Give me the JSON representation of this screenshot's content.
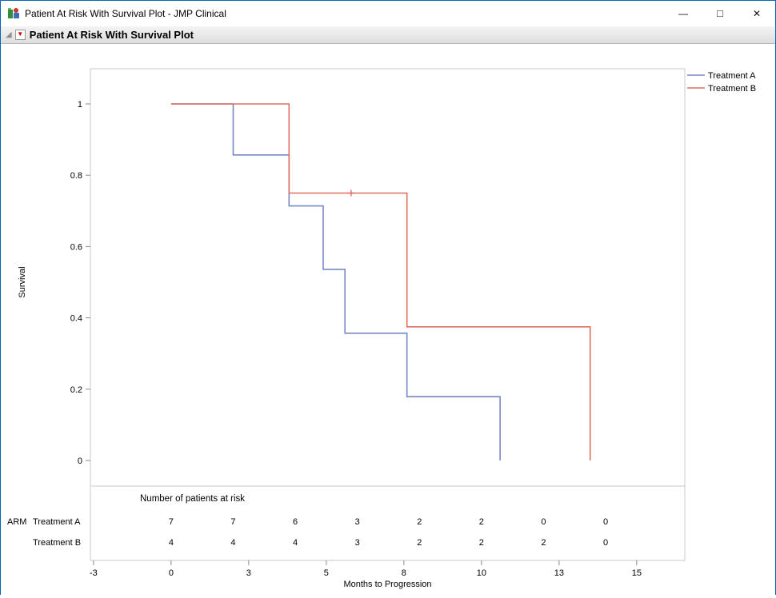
{
  "window": {
    "title": "Patient At Risk With Survival Plot - JMP Clinical"
  },
  "icons": {
    "minimize": "—",
    "maximize": "□",
    "close": "✕",
    "red_triangle_menu": "▼",
    "disclosure": "◢"
  },
  "outline": {
    "title": "Patient At Risk With Survival Plot"
  },
  "chart_data": {
    "type": "line",
    "subtype": "kaplan-meier-step",
    "title": "",
    "xlabel": "Months to Progression",
    "ylabel": "Survival",
    "xlim": [
      -2.6,
      16.55
    ],
    "ylim": [
      -0.07,
      1.1
    ],
    "grid": false,
    "legend_position": "top-right",
    "colors": {
      "treatment_a": "#7789c4",
      "treatment_b": "#dd7063",
      "frame": "#c8c8c8",
      "tick": "#8a8a8a"
    },
    "x_ticks": [
      {
        "v": -2.5,
        "label": "-3"
      },
      {
        "v": 0,
        "label": "0"
      },
      {
        "v": 2.5,
        "label": "3"
      },
      {
        "v": 5,
        "label": "5"
      },
      {
        "v": 7.5,
        "label": "8"
      },
      {
        "v": 10,
        "label": "10"
      },
      {
        "v": 12.5,
        "label": "13"
      },
      {
        "v": 15,
        "label": "15"
      }
    ],
    "y_ticks": [
      {
        "v": 1,
        "label": "1"
      },
      {
        "v": 0.8,
        "label": "0.8"
      },
      {
        "v": 0.6,
        "label": "0.6"
      },
      {
        "v": 0.4,
        "label": "0.4"
      },
      {
        "v": 0.2,
        "label": "0.2"
      },
      {
        "v": 0,
        "label": "0"
      }
    ],
    "series": [
      {
        "name": "Treatment A",
        "color": "#7789c4",
        "points": [
          [
            0,
            1
          ],
          [
            2,
            1
          ],
          [
            2,
            0.857
          ],
          [
            3.8,
            0.857
          ],
          [
            3.8,
            0.714
          ],
          [
            4.9,
            0.714
          ],
          [
            4.9,
            0.536
          ],
          [
            5.6,
            0.536
          ],
          [
            5.6,
            0.357
          ],
          [
            7.6,
            0.357
          ],
          [
            7.6,
            0.179
          ],
          [
            10.6,
            0.179
          ],
          [
            10.6,
            0
          ]
        ],
        "censors": []
      },
      {
        "name": "Treatment B",
        "color": "#dd7063",
        "points": [
          [
            0,
            1
          ],
          [
            3.8,
            1
          ],
          [
            3.8,
            0.75
          ],
          [
            7.6,
            0.75
          ],
          [
            7.6,
            0.375
          ],
          [
            13.5,
            0.375
          ],
          [
            13.5,
            0
          ]
        ],
        "censors": [
          [
            5.8,
            0.75
          ]
        ]
      }
    ],
    "legend": [
      "Treatment A",
      "Treatment B"
    ],
    "risk_table": {
      "header": "Number of patients at risk",
      "group_label": "ARM",
      "times": [
        0,
        2,
        4,
        6,
        8,
        10,
        12,
        14
      ],
      "rows": [
        {
          "name": "Treatment A",
          "values": [
            7,
            7,
            6,
            3,
            2,
            2,
            0,
            0
          ]
        },
        {
          "name": "Treatment B",
          "values": [
            4,
            4,
            4,
            3,
            2,
            2,
            2,
            0
          ]
        }
      ]
    }
  }
}
